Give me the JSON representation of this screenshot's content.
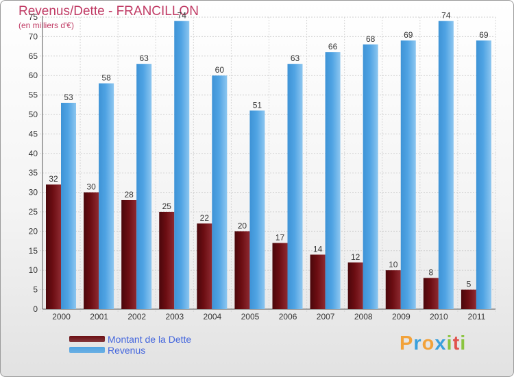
{
  "header": {
    "title": "Revenus/Dette - FRANCILLON",
    "subtitle": "(en milliers d'€)"
  },
  "chart_data": {
    "type": "bar",
    "categories": [
      "2000",
      "2001",
      "2002",
      "2003",
      "2004",
      "2005",
      "2006",
      "2007",
      "2008",
      "2009",
      "2010",
      "2011"
    ],
    "series": [
      {
        "name": "Montant de la Dette",
        "values": [
          32,
          30,
          28,
          25,
          22,
          20,
          17,
          14,
          12,
          10,
          8,
          5
        ],
        "color": "#6b0d12"
      },
      {
        "name": "Revenus",
        "values": [
          53,
          58,
          63,
          74,
          60,
          51,
          63,
          66,
          68,
          69,
          74,
          69
        ],
        "color": "#4fa3e3"
      }
    ],
    "ylim": [
      0,
      75
    ],
    "yticks": [
      0,
      5,
      10,
      15,
      20,
      25,
      30,
      35,
      40,
      45,
      50,
      55,
      60,
      65,
      70,
      75
    ],
    "grid": true,
    "legend": "bottom-left",
    "data_labels": true
  },
  "legend": {
    "items": [
      {
        "label": "Montant de la Dette",
        "color": "#6b0d12"
      },
      {
        "label": "Revenus",
        "color": "#4fa3e3"
      }
    ]
  },
  "logo": {
    "text": "Proxiti",
    "letters": [
      "P",
      "r",
      "o",
      "x",
      "i",
      "t",
      "i"
    ],
    "letter_colors": [
      "#f2a23a",
      "#3aa0dc",
      "#f2a23a",
      "#3aa0dc",
      "#8ac43f",
      "#e0524d",
      "#8ac43f"
    ]
  }
}
